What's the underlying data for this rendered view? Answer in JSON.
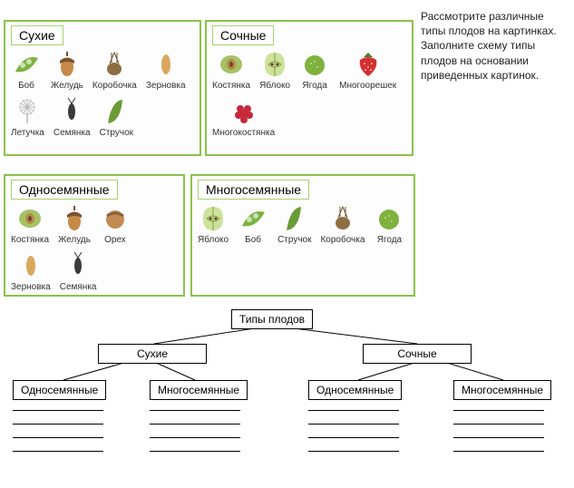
{
  "instruction": "Рассмотрите различные типы плодов на картинках. Заполните схему типы плодов на основании приведенных картинок.",
  "panels": {
    "dry": {
      "title": "Сухие",
      "items": [
        "Боб",
        "Желудь",
        "Коробочка",
        "Зерновка",
        "Летучка",
        "Семянка",
        "Стручок"
      ]
    },
    "juicy": {
      "title": "Сочные",
      "items": [
        "Костянка",
        "Яблоко",
        "Ягода",
        "Многоорешек",
        "Многокостянка"
      ]
    },
    "single": {
      "title": "Односемянные",
      "items": [
        "Костянка",
        "Желудь",
        "Орех",
        "Зерновка",
        "Семянка"
      ]
    },
    "multi": {
      "title": "Многосемянные",
      "items": [
        "Яблоко",
        "Боб",
        "Стручок",
        "Коробочка",
        "Ягода"
      ]
    }
  },
  "schema": {
    "root": "Типы плодов",
    "left": "Сухие",
    "right": "Сочные",
    "leaf1": "Односемянные",
    "leaf2": "Многосемянные",
    "leaf3": "Односемянные",
    "leaf4": "Многосемянные"
  },
  "colors": {
    "panel_border": "#8bc34a",
    "text": "#333333",
    "schema_border": "#000000",
    "background": "#ffffff"
  },
  "iconset": {
    "Боб": {
      "type": "pod",
      "fill": "#7cb342"
    },
    "Желудь": {
      "type": "acorn",
      "fill": "#c68a48"
    },
    "Коробочка": {
      "type": "capsule",
      "fill": "#8d6e43"
    },
    "Зерновка": {
      "type": "grain",
      "fill": "#d9a85d"
    },
    "Летучка": {
      "type": "dandelion",
      "fill": "#c8c8c8"
    },
    "Семянка": {
      "type": "seed",
      "fill": "#3a3a3a"
    },
    "Стручок": {
      "type": "longpod",
      "fill": "#6b9b37"
    },
    "Костянка": {
      "type": "drupe",
      "fill": "#a5c265"
    },
    "Яблоко": {
      "type": "apple",
      "fill": "#cde29a"
    },
    "Ягода": {
      "type": "berry",
      "fill": "#7fb23d"
    },
    "Многоорешек": {
      "type": "strawberry",
      "fill": "#d52f2f"
    },
    "Многокостянка": {
      "type": "raspberry",
      "fill": "#c62a3a"
    },
    "Орех": {
      "type": "nut",
      "fill": "#c28b55"
    }
  }
}
